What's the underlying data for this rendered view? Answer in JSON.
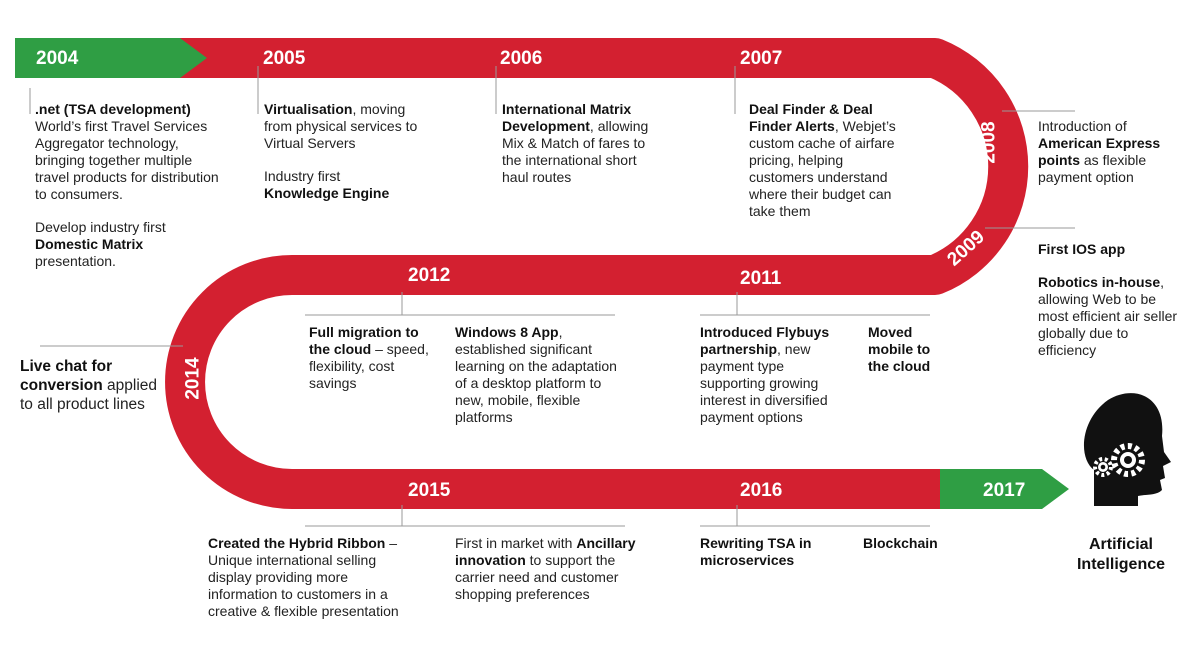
{
  "colors": {
    "ribbon": "#d32030",
    "start": "#2f9e44",
    "end": "#2f9e44",
    "text": "#222222"
  },
  "years": {
    "y2004": "2004",
    "y2005": "2005",
    "y2006": "2006",
    "y2007": "2007",
    "y2008": "2008",
    "y2009": "2009",
    "y2011": "2011",
    "y2012": "2012",
    "y2014": "2014",
    "y2015": "2015",
    "y2016": "2016",
    "y2017": "2017"
  },
  "e2004": {
    "a_bold": ".net (TSA development)",
    "a_text": "World’s first Travel Services Aggregator technology, bringing together multiple travel products for distribution to consumers.",
    "b_pre": "Develop industry first ",
    "b_bold": "Domestic Matrix",
    "b_post": " presentation."
  },
  "e2005": {
    "a_bold": "Virtualisation",
    "a_post": ", moving from physical services to Virtual Servers",
    "b_pre": "Industry first ",
    "b_bold": "Knowledge Engine"
  },
  "e2006": {
    "a_bold": "International Matrix Development",
    "a_post": ", allowing Mix & Match of fares to the international short haul routes"
  },
  "e2007": {
    "a_bold": "Deal Finder & Deal Finder Alerts",
    "a_post": ", Webjet’s custom cache of airfare pricing, helping customers understand where their budget can take them"
  },
  "e2008": {
    "a_pre": "Introduction of ",
    "a_bold": "American Express points",
    "a_post": " as flexible payment option"
  },
  "e2009": {
    "a_bold": "First IOS app",
    "b_bold": "Robotics in-house",
    "b_post": ", allowing Web to be most efficient air seller globally due to efficiency"
  },
  "e2012": {
    "a_bold": "Full migration to the cloud",
    "a_post": " – speed, flexibility, cost savings",
    "b_bold": "Windows 8 App",
    "b_post": ", established significant learning on the adaptation of a desktop platform to new, mobile, flexible platforms"
  },
  "e2011": {
    "a_bold": "Introduced Flybuys partnership",
    "a_post": ", new payment type supporting growing interest in diversified payment options",
    "b_bold": "Moved mobile to the cloud"
  },
  "e2014": {
    "a_bold": "Live chat for conversion",
    "a_post": " applied to all product lines"
  },
  "e2015": {
    "a_bold": "Created the Hybrid Ribbon",
    "a_post": " – Unique international selling display providing more information to customers in a creative & flexible presentation",
    "b_pre": "First in market with ",
    "b_bold": "Ancillary innovation",
    "b_post": " to support the carrier need and customer shopping preferences"
  },
  "e2016": {
    "a_bold": "Rewriting  TSA in microservices",
    "b_bold": "Blockchain"
  },
  "ai": {
    "label": "Artificial Intelligence",
    "icon": "head-gears-icon"
  }
}
